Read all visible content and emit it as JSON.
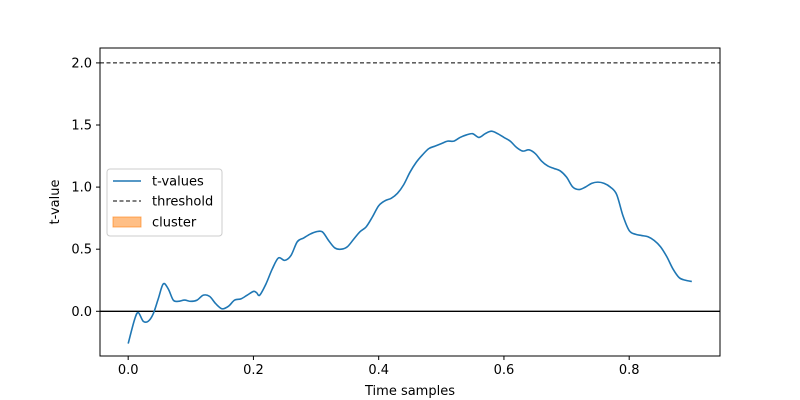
{
  "chart_data": {
    "type": "line",
    "title": "",
    "xlabel": "Time samples",
    "ylabel": "t-value",
    "xlim": [
      -0.045,
      0.945
    ],
    "ylim": [
      -0.36,
      2.12
    ],
    "x_ticks": [
      0.0,
      0.2,
      0.4,
      0.6,
      0.8
    ],
    "x_tick_labels": [
      "0.0",
      "0.2",
      "0.4",
      "0.6",
      "0.8"
    ],
    "y_ticks": [
      0.0,
      0.5,
      1.0,
      1.5,
      2.0
    ],
    "y_tick_labels": [
      "0.0",
      "0.5",
      "1.0",
      "1.5",
      "2.0"
    ],
    "grid": false,
    "legend_position": "center-left",
    "series": [
      {
        "name": "t-values",
        "color": "#1f77b4",
        "x": [
          0.0,
          0.01,
          0.016,
          0.024,
          0.032,
          0.04,
          0.048,
          0.056,
          0.064,
          0.072,
          0.08,
          0.09,
          0.1,
          0.11,
          0.12,
          0.13,
          0.14,
          0.15,
          0.16,
          0.17,
          0.18,
          0.19,
          0.2,
          0.205,
          0.21,
          0.22,
          0.23,
          0.24,
          0.25,
          0.26,
          0.27,
          0.28,
          0.29,
          0.3,
          0.31,
          0.32,
          0.33,
          0.34,
          0.35,
          0.36,
          0.37,
          0.38,
          0.39,
          0.4,
          0.41,
          0.42,
          0.43,
          0.44,
          0.45,
          0.46,
          0.47,
          0.48,
          0.49,
          0.5,
          0.51,
          0.52,
          0.53,
          0.54,
          0.55,
          0.56,
          0.57,
          0.58,
          0.59,
          0.6,
          0.61,
          0.62,
          0.63,
          0.64,
          0.65,
          0.66,
          0.67,
          0.68,
          0.69,
          0.7,
          0.71,
          0.72,
          0.73,
          0.74,
          0.75,
          0.76,
          0.77,
          0.78,
          0.79,
          0.8,
          0.81,
          0.82,
          0.83,
          0.84,
          0.85,
          0.86,
          0.87,
          0.88,
          0.89,
          0.9
        ],
        "y": [
          -0.26,
          -0.07,
          -0.01,
          -0.08,
          -0.08,
          -0.02,
          0.1,
          0.22,
          0.18,
          0.09,
          0.08,
          0.09,
          0.08,
          0.09,
          0.13,
          0.12,
          0.06,
          0.02,
          0.04,
          0.09,
          0.1,
          0.13,
          0.16,
          0.15,
          0.13,
          0.22,
          0.34,
          0.43,
          0.41,
          0.45,
          0.56,
          0.59,
          0.62,
          0.64,
          0.64,
          0.57,
          0.51,
          0.5,
          0.52,
          0.58,
          0.64,
          0.68,
          0.76,
          0.85,
          0.89,
          0.91,
          0.95,
          1.02,
          1.12,
          1.2,
          1.26,
          1.31,
          1.33,
          1.35,
          1.37,
          1.37,
          1.4,
          1.42,
          1.43,
          1.4,
          1.43,
          1.45,
          1.43,
          1.4,
          1.37,
          1.32,
          1.29,
          1.3,
          1.27,
          1.21,
          1.17,
          1.15,
          1.13,
          1.08,
          1.0,
          0.98,
          1.0,
          1.03,
          1.04,
          1.03,
          1.0,
          0.94,
          0.77,
          0.65,
          0.62,
          0.61,
          0.6,
          0.57,
          0.52,
          0.44,
          0.34,
          0.27,
          0.25,
          0.24
        ]
      },
      {
        "name": "threshold",
        "color": "#000000",
        "style": "dashed",
        "value": 2.0
      },
      {
        "name": "cluster",
        "color": "#ff7f0e",
        "type": "area",
        "x": [],
        "y": []
      }
    ],
    "reference_lines": [
      {
        "y": 0.0,
        "color": "#000000",
        "style": "solid"
      }
    ]
  }
}
